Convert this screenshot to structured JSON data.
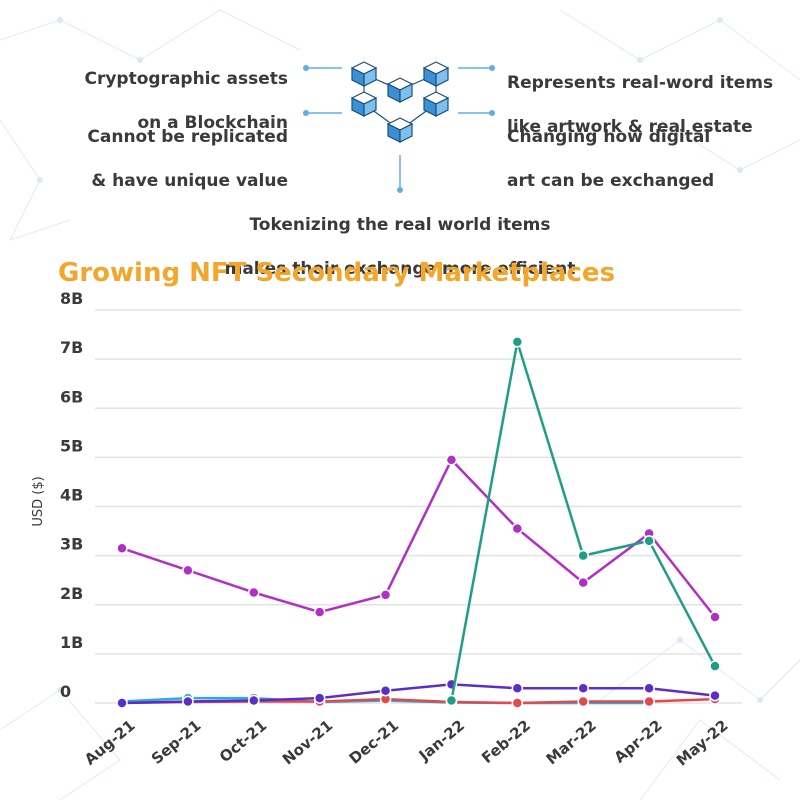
{
  "info": {
    "top_left": [
      "Cryptographic assets",
      "on a Blockchain"
    ],
    "mid_left": [
      "Cannot be replicated",
      "& have unique value"
    ],
    "top_right": [
      "Represents real-word items",
      "like artwork & real estate"
    ],
    "mid_right": [
      "Changing how digital",
      "art can be exchanged"
    ],
    "bottom": [
      "Tokenizing the real world items",
      "makes their exchange more efficient"
    ],
    "icon": "blockchain-cubes-icon"
  },
  "colors": {
    "title": "#f4a62a",
    "accent": "#5fb0e0",
    "text": "#3a3a3a"
  },
  "chart_data": {
    "type": "line",
    "title": "Growing NFT Secondary Marketplaces",
    "xlabel": "",
    "ylabel": "USD ($)",
    "categories": [
      "Aug-21",
      "Sep-21",
      "Oct-21",
      "Nov-21",
      "Dec-21",
      "Jan-22",
      "Feb-22",
      "Mar-22",
      "Apr-22",
      "May-22"
    ],
    "y_tick_labels": [
      "0",
      "1B",
      "2B",
      "3B",
      "4B",
      "5B",
      "6B",
      "7B",
      "8B"
    ],
    "ylim": [
      0,
      8000000000
    ],
    "grid": true,
    "legend": "none",
    "series": [
      {
        "color": "#b22fc5",
        "values": [
          3150000000,
          2700000000,
          2250000000,
          1850000000,
          2200000000,
          4950000000,
          3550000000,
          2450000000,
          3450000000,
          1750000000
        ]
      },
      {
        "color": "#1f9e86",
        "values": [
          null,
          null,
          null,
          null,
          null,
          50000000,
          7350000000,
          3000000000,
          3300000000,
          750000000
        ]
      },
      {
        "color": "#5b2ec7",
        "values": [
          0,
          30000000,
          50000000,
          100000000,
          250000000,
          380000000,
          300000000,
          300000000,
          300000000,
          150000000
        ]
      },
      {
        "color": "#e04a4a",
        "values": [
          0,
          20000000,
          30000000,
          30000000,
          80000000,
          20000000,
          0,
          30000000,
          30000000,
          80000000
        ]
      },
      {
        "color": "#2ea8e0",
        "values": [
          30000000,
          100000000,
          100000000,
          20000000,
          50000000,
          10000000,
          0,
          0,
          0,
          null
        ]
      }
    ]
  }
}
